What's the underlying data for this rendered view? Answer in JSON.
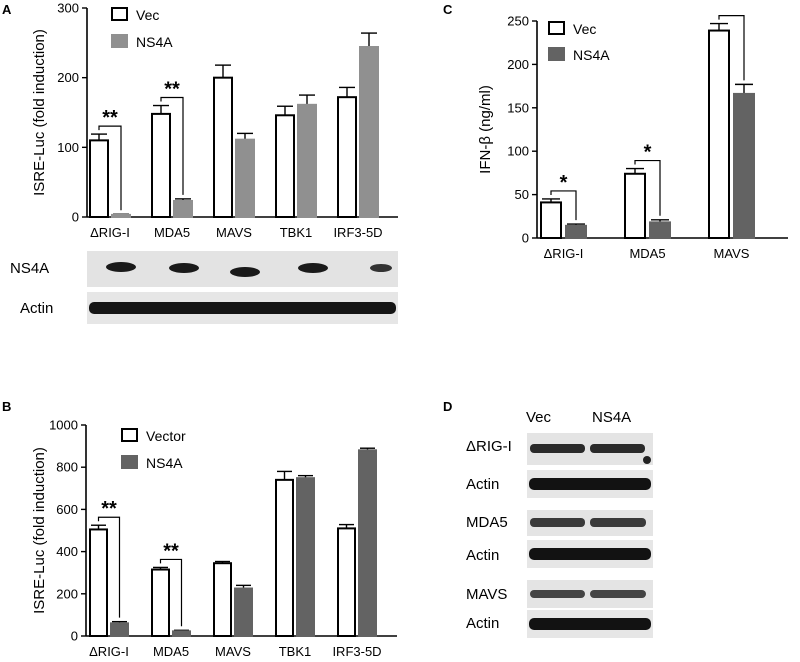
{
  "panels": {
    "A": "A",
    "B": "B",
    "C": "C",
    "D": "D"
  },
  "chart_data": [
    {
      "panel": "A",
      "type": "bar",
      "categories": [
        "ΔRIG-I",
        "MDA5",
        "MAVS",
        "TBK1",
        "IRF3-5D"
      ],
      "series": [
        {
          "name": "Vec",
          "values": [
            110,
            148,
            200,
            146,
            172
          ],
          "errors": [
            9,
            12,
            18,
            13,
            14
          ],
          "fill": "#ffffff"
        },
        {
          "name": "NS4A",
          "values": [
            3,
            23,
            111,
            161,
            244
          ],
          "errors": [
            1,
            3,
            9,
            14,
            20
          ],
          "fill": "#909090"
        }
      ],
      "ylabel": "ISRE-Luc (fold induction)",
      "yticks": [
        0,
        100,
        200,
        300
      ],
      "ylim": [
        0,
        300
      ],
      "significance": [
        {
          "category": 0,
          "label": "**"
        },
        {
          "category": 1,
          "label": "**"
        }
      ],
      "legend_position": "top-left"
    },
    {
      "panel": "B",
      "type": "bar",
      "categories": [
        "ΔRIG-I",
        "MDA5",
        "MAVS",
        "TBK1",
        "IRF3-5D"
      ],
      "series": [
        {
          "name": "Vector",
          "values": [
            505,
            315,
            345,
            740,
            510
          ],
          "errors": [
            20,
            10,
            8,
            40,
            18
          ],
          "fill": "#ffffff"
        },
        {
          "name": "NS4A",
          "values": [
            60,
            22,
            225,
            748,
            880
          ],
          "errors": [
            8,
            5,
            15,
            12,
            10
          ],
          "fill": "#636363"
        }
      ],
      "ylabel": "ISRE-Luc (fold induction)",
      "yticks": [
        0,
        200,
        400,
        600,
        800,
        1000
      ],
      "ylim": [
        0,
        1000
      ],
      "significance": [
        {
          "category": 0,
          "label": "**"
        },
        {
          "category": 1,
          "label": "**"
        }
      ],
      "legend_position": "top-left"
    },
    {
      "panel": "C",
      "type": "bar",
      "categories": [
        "ΔRIG-I",
        "MDA5",
        "MAVS"
      ],
      "series": [
        {
          "name": "Vec",
          "values": [
            41,
            74,
            239
          ],
          "errors": [
            4,
            6,
            8
          ],
          "fill": "#ffffff"
        },
        {
          "name": "NS4A",
          "values": [
            14,
            18,
            166
          ],
          "errors": [
            2,
            3,
            11
          ],
          "fill": "#636363"
        }
      ],
      "ylabel": "IFN-β (ng/ml)",
      "yticks": [
        0,
        50,
        100,
        150,
        200,
        250
      ],
      "ylim": [
        0,
        250
      ],
      "significance": [
        {
          "category": 0,
          "label": "*"
        },
        {
          "category": 1,
          "label": "*"
        },
        {
          "category": 2,
          "label": ""
        }
      ],
      "legend_position": "top-left"
    }
  ],
  "blots": {
    "A": {
      "rows": [
        "NS4A",
        "Actin"
      ]
    },
    "D": {
      "columns": [
        "Vec",
        "NS4A"
      ],
      "rows": [
        "ΔRIG-I",
        "Actin",
        "MDA5",
        "Actin",
        "MAVS",
        "Actin"
      ]
    }
  }
}
